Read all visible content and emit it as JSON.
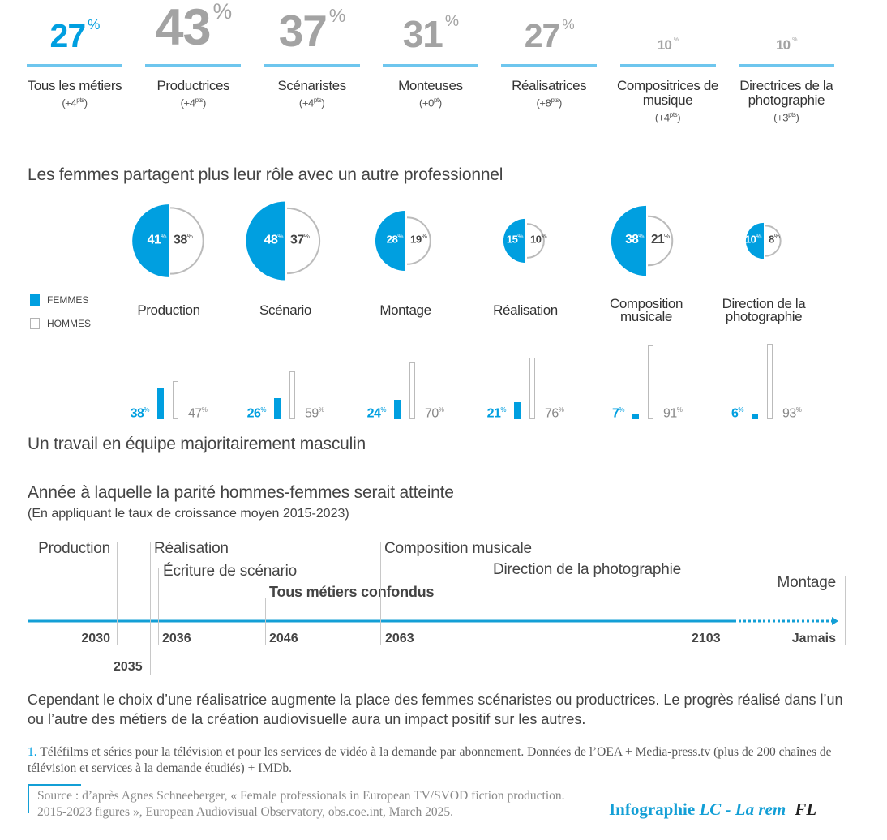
{
  "colors": {
    "femmes": "#009fe0",
    "hommes": "#b3b3b3",
    "highlight_bar": "#6ec6ee",
    "text": "#444444"
  },
  "top_stats": [
    {
      "value": 27,
      "unit": "%",
      "label": "Tous les métiers",
      "change": "(+4",
      "change_unit": "pts",
      "highlight": true
    },
    {
      "value": 43,
      "unit": "%",
      "label": "Productrices",
      "change": "(+4",
      "change_unit": "pts"
    },
    {
      "value": 37,
      "unit": "%",
      "label": "Scénaristes",
      "change": "(+4",
      "change_unit": "pts"
    },
    {
      "value": 31,
      "unit": "%",
      "label": "Monteuses",
      "change": "(+0",
      "change_unit": "pt"
    },
    {
      "value": 27,
      "unit": "%",
      "label": "Réalisatrices",
      "change": "(+8",
      "change_unit": "pts"
    },
    {
      "value": 10,
      "unit": "%",
      "label": "Compositrices de musique",
      "change": "(+4",
      "change_unit": "pts"
    },
    {
      "value": 10,
      "unit": "%",
      "label": "Directrices de la photographie",
      "change": "(+3",
      "change_unit": "pts"
    }
  ],
  "share_title": "Les femmes partagent plus leur rôle avec un autre professionnel",
  "legend": {
    "femmes": "FEMMES",
    "hommes": "HOMMES"
  },
  "team_title": "Un travail en équipe majoritairement masculin",
  "chart_data": [
    {
      "type": "half-circle",
      "title": "Les femmes partagent plus leur rôle avec un autre professionnel",
      "categories": [
        "Production",
        "Scénario",
        "Montage",
        "Réalisation",
        "Composition musicale",
        "Direction de la photographie"
      ],
      "series": [
        {
          "name": "FEMMES",
          "values": [
            41,
            48,
            28,
            15,
            38,
            10
          ]
        },
        {
          "name": "HOMMES",
          "values": [
            38,
            37,
            19,
            10,
            21,
            8
          ]
        }
      ],
      "unit": "%"
    },
    {
      "type": "bar",
      "title": "Un travail en équipe majoritairement masculin",
      "categories": [
        "Production",
        "Scénario",
        "Montage",
        "Réalisation",
        "Composition musicale",
        "Direction de la photographie"
      ],
      "series": [
        {
          "name": "FEMMES",
          "values": [
            38,
            26,
            24,
            21,
            7,
            6
          ]
        },
        {
          "name": "HOMMES",
          "values": [
            47,
            59,
            70,
            76,
            91,
            93
          ]
        }
      ],
      "unit": "%"
    },
    {
      "type": "timeline",
      "title": "Année à laquelle la parité hommes-femmes serait atteinte",
      "subtitle": "(En appliquant le taux de croissance moyen 2015-2023)",
      "events": [
        {
          "label": "Production",
          "year": "2030"
        },
        {
          "label": "Réalisation",
          "year": "2035"
        },
        {
          "label": "Écriture de scénario",
          "year": "2036"
        },
        {
          "label": "Tous métiers confondus",
          "year": "2046",
          "bold": true
        },
        {
          "label": "Composition musicale",
          "year": "2063"
        },
        {
          "label": "Direction de la photographie",
          "year": "2103"
        },
        {
          "label": "Montage",
          "year": "Jamais"
        }
      ]
    }
  ],
  "paragraph": "Cependant le choix d’une réalisatrice augmente la place des femmes scénaristes ou productrices. Le progrès réalisé dans l’un ou l’autre des métiers de la création audiovisuelle aura un impact positif sur les autres.",
  "footnote": {
    "number": "1.",
    "text": "Téléfilms et séries pour la télévision et pour les services de vidéo à la demande par abonnement. Données de l’OEA + Media-press.tv (plus de 200 chaînes de télévision et services à la demande étudiés) + IMDb."
  },
  "source": "Source : d’après Agnes Schneeberger, « Female professionals in European TV/SVOD fiction production. 2015-2023 figures », European Audiovisual Observatory, obs.coe.int, March 2025.",
  "credit": {
    "prefix": "Infographie",
    "authors": "LC - La rem",
    "logo": "FL"
  }
}
